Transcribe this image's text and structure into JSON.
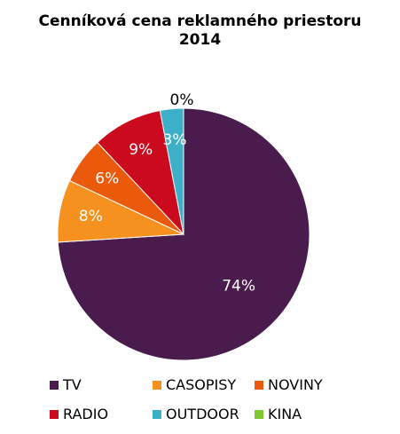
{
  "chart_data": {
    "type": "pie",
    "title": "Cenníková cena reklamného priestoru",
    "subtitle": "2014",
    "categories": [
      "TV",
      "CASOPISY",
      "NOVINY",
      "RADIO",
      "OUTDOOR",
      "KINA"
    ],
    "values": [
      74,
      8,
      6,
      9,
      3,
      0
    ],
    "labels": [
      "74%",
      "8%",
      "6%",
      "9%",
      "3%",
      "0%"
    ],
    "colors": [
      "#4a1c4e",
      "#f5911e",
      "#eb5a0a",
      "#cc0a1e",
      "#3cb0c8",
      "#7fc832"
    ],
    "legend": "bottom"
  }
}
